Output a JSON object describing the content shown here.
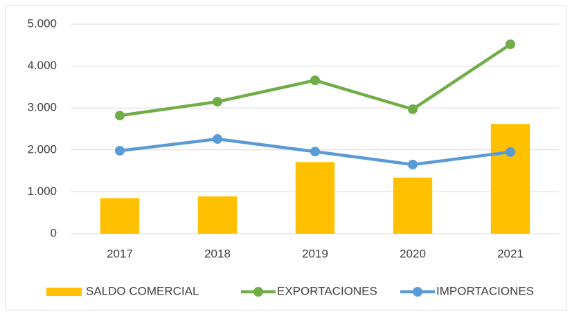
{
  "chart_data": {
    "type": "combo",
    "categories": [
      "2017",
      "2018",
      "2019",
      "2020",
      "2021"
    ],
    "series": [
      {
        "name": "SALDO COMERCIAL",
        "type": "bar",
        "color": "#ffc000",
        "values": [
          850,
          890,
          1710,
          1340,
          2620
        ]
      },
      {
        "name": "EXPORTACIONES",
        "type": "line",
        "color": "#70ad47",
        "values": [
          2820,
          3150,
          3660,
          2970,
          4520
        ]
      },
      {
        "name": "IMPORTACIONES",
        "type": "line",
        "color": "#5b9bd5",
        "values": [
          1980,
          2260,
          1960,
          1650,
          1950
        ]
      }
    ],
    "ylim": [
      0,
      5000
    ],
    "yticks": [
      0,
      {
        "value": 1000,
        "label": "1.000"
      },
      {
        "value": 2000,
        "label": "2.000"
      },
      {
        "value": 3000,
        "label": "3.000"
      },
      {
        "value": 4000,
        "label": "4.000"
      },
      {
        "value": 5000,
        "label": "5.000"
      }
    ],
    "grid": true,
    "legend": "bottom"
  }
}
